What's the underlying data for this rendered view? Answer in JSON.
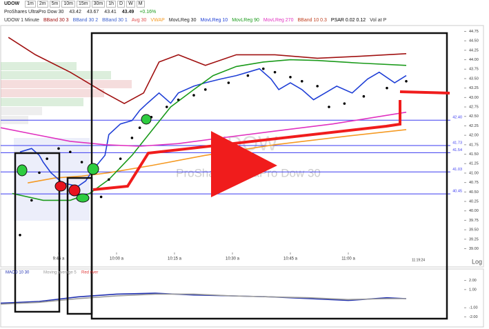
{
  "toolbar": {
    "symbol": "UDOW",
    "intervals": [
      "1m",
      "2m",
      "5m",
      "10m",
      "15m",
      "30m",
      "1h",
      "D",
      "W",
      "M"
    ],
    "log_button": "Log"
  },
  "quote": {
    "name": "ProShares UltraPro Dow 30",
    "open": "43.42",
    "high": "43.67",
    "low": "43.41",
    "close": "43.49",
    "change": "+0.16%"
  },
  "watermark": {
    "symbol": "UDOW",
    "name": "ProShares UltraPro Dow 30"
  },
  "chart_data": [
    {
      "type": "line",
      "last_time": "11:19:24",
      "xlim": [
        0,
        120
      ],
      "ylim": [
        38.9,
        44.85
      ],
      "xticks": [
        {
          "value": 15,
          "label": "9:45 a"
        },
        {
          "value": 30,
          "label": "10:00 a"
        },
        {
          "value": 45,
          "label": "10:15 a"
        },
        {
          "value": 60,
          "label": "10:30 a"
        },
        {
          "value": 75,
          "label": "10:45 a"
        },
        {
          "value": 90,
          "label": "11:00 a"
        }
      ],
      "yticks": [
        {
          "value": 39,
          "label": "39.00"
        },
        {
          "value": 39.25,
          "label": "39.25"
        },
        {
          "value": 39.5,
          "label": "39.50"
        },
        {
          "value": 39.75,
          "label": "39.75"
        },
        {
          "value": 40,
          "label": "40.00"
        },
        {
          "value": 40.25,
          "label": "40.25"
        },
        {
          "value": 40.5,
          "label": "40.50"
        },
        {
          "value": 40.75,
          "label": "40.75"
        },
        {
          "value": 41,
          "label": "41.00"
        },
        {
          "value": 41.25,
          "label": "41.25"
        },
        {
          "value": 41.5,
          "label": "41.50"
        },
        {
          "value": 41.75,
          "label": "41.75"
        },
        {
          "value": 42,
          "label": "42.00"
        },
        {
          "value": 42.25,
          "label": "42.25"
        },
        {
          "value": 42.5,
          "label": "42.50"
        },
        {
          "value": 42.75,
          "label": "42.75"
        },
        {
          "value": 43,
          "label": "43.00"
        },
        {
          "value": 43.25,
          "label": "43.25"
        },
        {
          "value": 43.5,
          "label": "43.50"
        },
        {
          "value": 43.75,
          "label": "43.75"
        },
        {
          "value": 44,
          "label": "44.00"
        },
        {
          "value": 44.25,
          "label": "44.25"
        },
        {
          "value": 44.5,
          "label": "44.50"
        },
        {
          "value": 44.75,
          "label": "44.75"
        }
      ],
      "levels": [
        {
          "value": 42.4,
          "label": "42.40"
        },
        {
          "value": 41.73,
          "label": "41.73"
        },
        {
          "value": 41.54,
          "label": "41.54"
        },
        {
          "value": 41.03,
          "label": "41.03"
        },
        {
          "value": 40.45,
          "label": "40.45"
        }
      ],
      "level_color": "#3a3af0",
      "series": [
        {
          "name": "UDOW 1 Minute",
          "color": "#333333"
        },
        {
          "name": "BBand 30 3",
          "color": "#a01010",
          "x": [
            2,
            9,
            18,
            27,
            32,
            37,
            41,
            46,
            53,
            61,
            71,
            82,
            93,
            105
          ],
          "values": [
            44.59,
            44.13,
            43.67,
            43.12,
            42.84,
            43.12,
            43.94,
            44.13,
            43.85,
            44.13,
            44.13,
            44.04,
            44.09,
            44.16
          ]
        },
        {
          "name": "BBand 30 2",
          "color": "#3a5fcd"
        },
        {
          "name": "BBand 30 1",
          "color": "#3a5fcd"
        },
        {
          "name": "Avg 30",
          "color": "#e05050"
        },
        {
          "name": "VWAP",
          "color": "#f59a23",
          "x": [
            7,
            14,
            21,
            28,
            39,
            53,
            71,
            89,
            105
          ],
          "values": [
            40.74,
            40.87,
            40.92,
            41.01,
            41.2,
            41.47,
            41.75,
            41.97,
            42.15
          ]
        },
        {
          "name": "MovLReg 30",
          "color": "#222222"
        },
        {
          "name": "MovLReg 10",
          "color": "#1f3fd6",
          "x": [
            5,
            8,
            10,
            11,
            13,
            16,
            20,
            22,
            24,
            27,
            28,
            31,
            34,
            36,
            38,
            41,
            44,
            46,
            50,
            53,
            57,
            61,
            64,
            67,
            70,
            72,
            75,
            78,
            81,
            84,
            87,
            91,
            95,
            98,
            102,
            105
          ],
          "values": [
            41.56,
            41.65,
            41.47,
            41.29,
            41.01,
            40.74,
            40.65,
            40.79,
            41.1,
            41.47,
            42.02,
            42.3,
            42.39,
            42.66,
            42.85,
            43.12,
            42.85,
            43.12,
            43.3,
            43.39,
            43.49,
            43.58,
            43.67,
            43.76,
            43.49,
            43.21,
            43.39,
            43.21,
            42.94,
            43.12,
            43.3,
            43.12,
            43.49,
            43.67,
            43.39,
            43.58
          ]
        },
        {
          "name": "MovLReg 90",
          "color": "#1a9a1a",
          "x": [
            3,
            11,
            18,
            23,
            28,
            34,
            39,
            44,
            50,
            55,
            61,
            68,
            75,
            82,
            93,
            105
          ],
          "values": [
            40.46,
            40.28,
            40.28,
            40.46,
            40.83,
            41.47,
            42.11,
            42.75,
            43.21,
            43.58,
            43.82,
            43.94,
            44.0,
            43.98,
            43.91,
            43.85
          ]
        },
        {
          "name": "MovLReg 270",
          "color": "#e030c0",
          "x": [
            0,
            9,
            18,
            27,
            36,
            46,
            57,
            71,
            86,
            105
          ],
          "values": [
            42.2,
            42.02,
            41.84,
            41.75,
            41.71,
            41.78,
            41.93,
            42.11,
            42.3,
            42.61
          ]
        },
        {
          "name": "BBand 10 0.3",
          "color": "#c04020"
        },
        {
          "name": "PSAR 0.02 0.12",
          "color": "#000000",
          "marker": "dots",
          "x": [
            5,
            8,
            10,
            12,
            15,
            18,
            21,
            24,
            26,
            28,
            31,
            34,
            36,
            39,
            43,
            46,
            50,
            53,
            59,
            64,
            68,
            71,
            75,
            78,
            82,
            85,
            89,
            94,
            100,
            105
          ],
          "values": [
            39.36,
            40.28,
            41.01,
            41.38,
            41.65,
            41.56,
            41.29,
            41.1,
            40.37,
            40.83,
            41.38,
            41.93,
            42.2,
            42.48,
            42.75,
            42.94,
            43.06,
            43.21,
            43.39,
            43.58,
            43.76,
            43.67,
            43.54,
            43.43,
            43.3,
            42.75,
            42.84,
            43.03,
            43.25,
            43.43
          ]
        },
        {
          "name": "Vol at P",
          "color": "#333333"
        }
      ]
    },
    {
      "type": "line",
      "xlim": [
        0,
        120
      ],
      "ylim": [
        -2.5,
        2.5
      ],
      "yticks": [
        {
          "value": 2,
          "label": "2.00"
        },
        {
          "value": 1,
          "label": "1.00"
        },
        {
          "value": -1,
          "label": "-1.00"
        },
        {
          "value": -2,
          "label": "-2.00"
        }
      ],
      "series": [
        {
          "name": "MACD 10 30",
          "color": "#1f2fb0",
          "x": [
            0,
            10,
            20,
            30,
            40,
            50,
            60,
            70,
            80,
            90,
            100,
            105
          ],
          "values": [
            -0.5,
            -0.3,
            0.2,
            0.5,
            0.6,
            0.4,
            0.3,
            0.2,
            0.0,
            -0.2,
            0.1,
            0.0
          ]
        },
        {
          "name": "Moving average 5",
          "color": "#999999",
          "x": [
            0,
            10,
            20,
            30,
            40,
            50,
            60,
            70,
            80,
            90,
            100,
            105
          ],
          "values": [
            -0.6,
            -0.4,
            0.0,
            0.3,
            0.5,
            0.5,
            0.3,
            0.2,
            0.1,
            -0.1,
            0.0,
            0.0
          ]
        },
        {
          "name": "Red river",
          "color": "#e04040"
        }
      ]
    }
  ]
}
